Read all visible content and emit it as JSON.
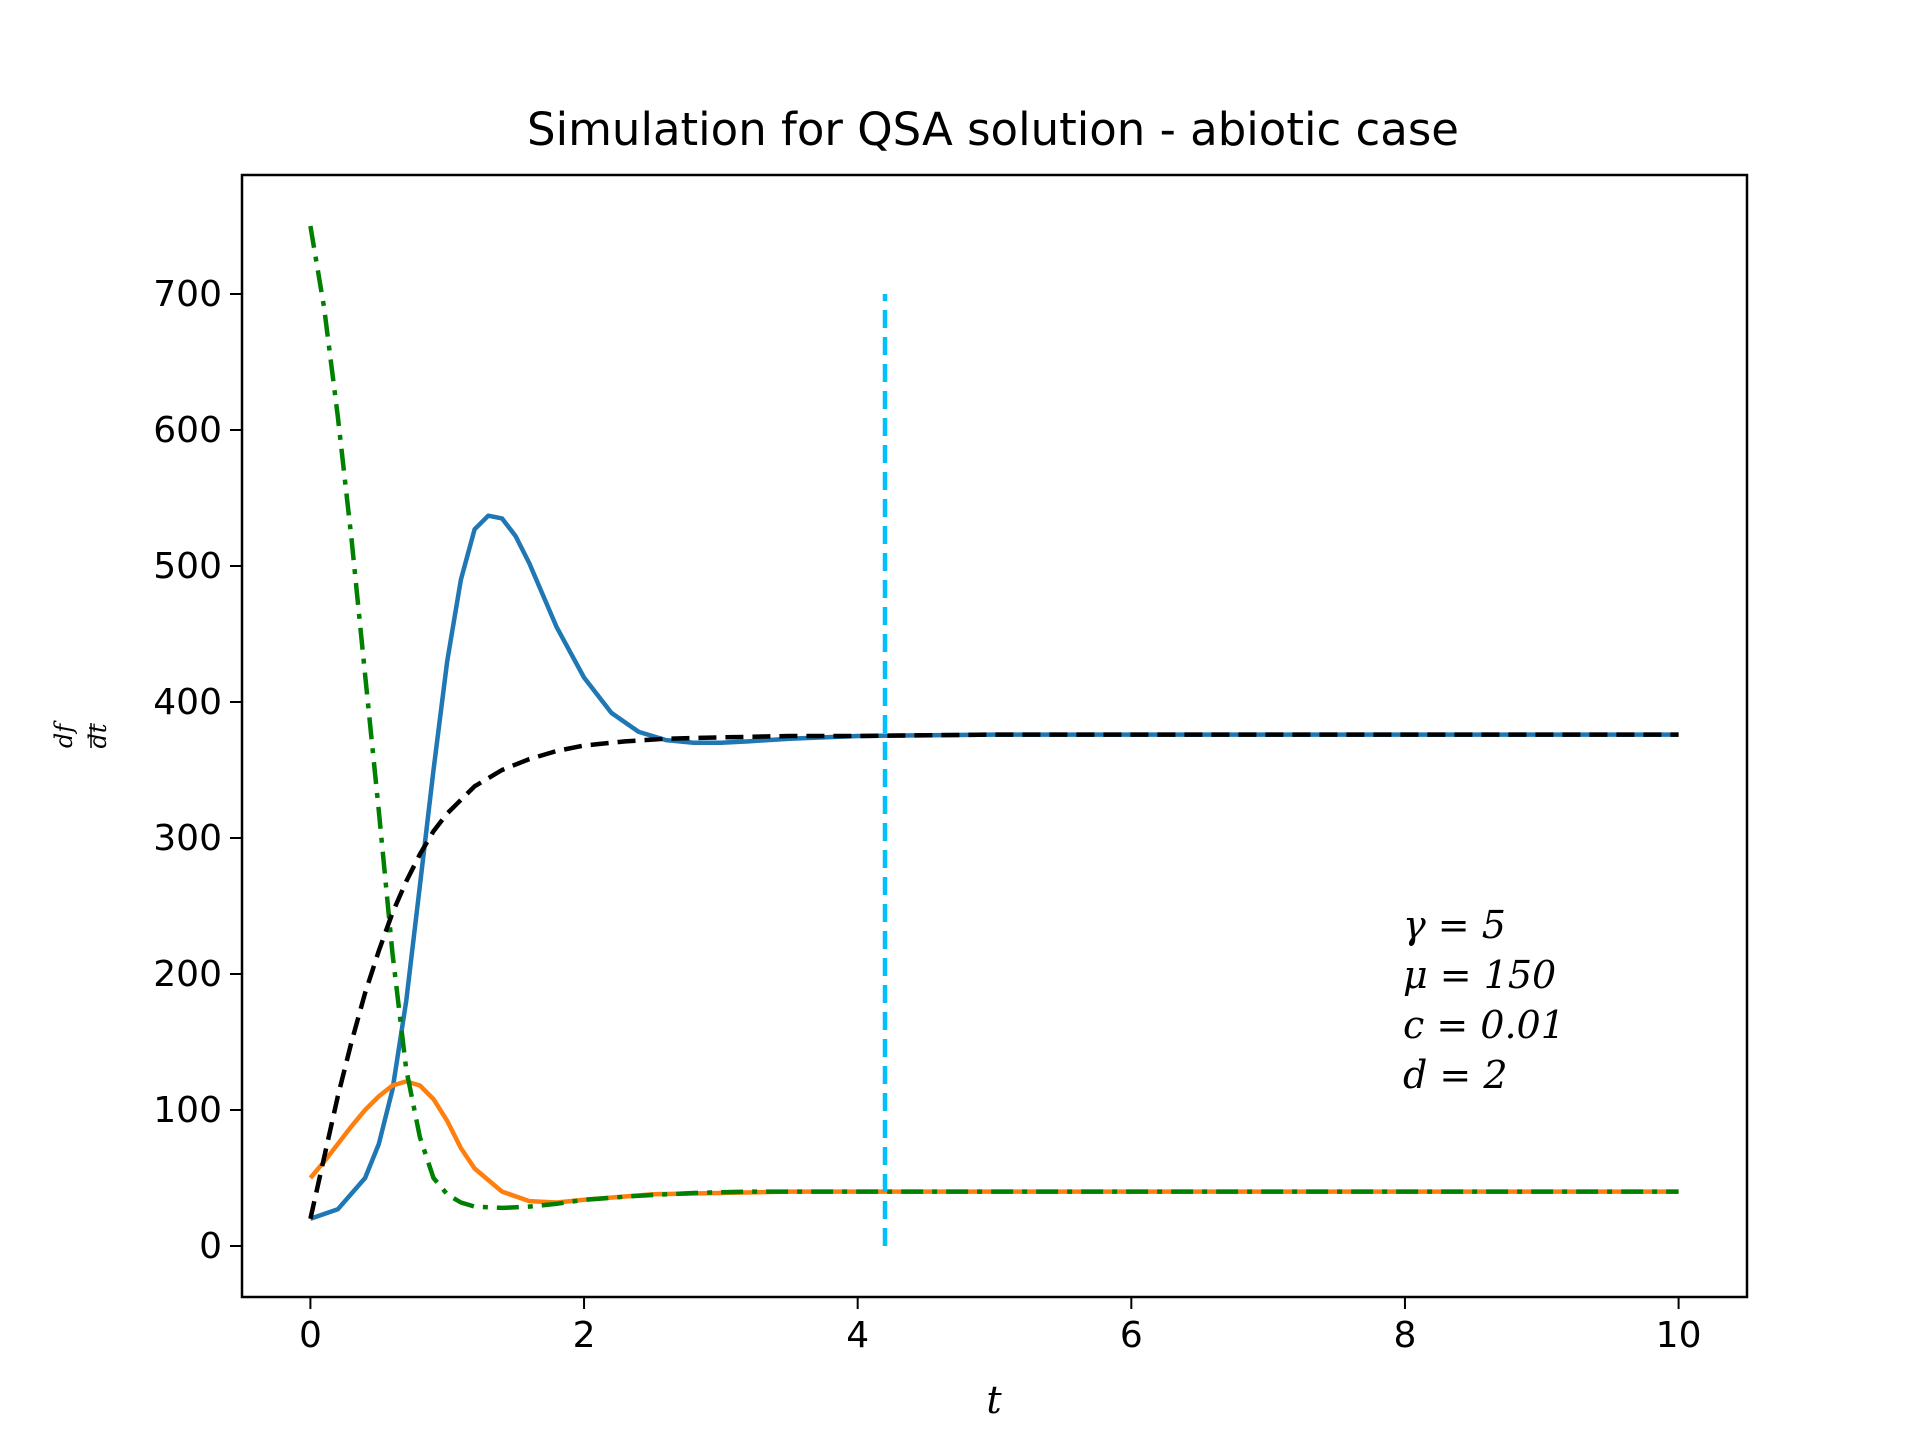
{
  "chart_data": {
    "type": "line",
    "title": "Simulation for QSA solution - abiotic case",
    "xlabel": "t",
    "ylabel": {
      "numerator": "df",
      "denominator": "dt"
    },
    "xlim": [
      -0.5,
      10.5
    ],
    "ylim": [
      -37.5,
      787.5
    ],
    "xticks": [
      0,
      2,
      4,
      6,
      8,
      10
    ],
    "yticks": [
      0,
      100,
      200,
      300,
      400,
      500,
      600,
      700
    ],
    "grid": false,
    "legend": "none",
    "colors": {
      "blue": "#1f77b4",
      "orange": "#ff7f0e",
      "green": "#008000",
      "black": "#000000",
      "cyan": "#00bfff"
    },
    "series": [
      {
        "color": "#1f77b4",
        "style": "solid",
        "x": [
          0,
          0.2,
          0.4,
          0.5,
          0.6,
          0.7,
          0.8,
          0.9,
          1.0,
          1.1,
          1.2,
          1.3,
          1.4,
          1.5,
          1.6,
          1.8,
          2.0,
          2.2,
          2.4,
          2.6,
          2.8,
          3.0,
          3.2,
          3.5,
          4.0,
          5.0,
          10.0
        ],
        "y": [
          20,
          27,
          50,
          75,
          115,
          180,
          265,
          350,
          430,
          490,
          527,
          537,
          535,
          522,
          502,
          455,
          418,
          392,
          378,
          372,
          370,
          370,
          371,
          373,
          375,
          376,
          376
        ]
      },
      {
        "color": "#ff7f0e",
        "style": "solid",
        "x": [
          0,
          0.1,
          0.2,
          0.3,
          0.4,
          0.5,
          0.6,
          0.7,
          0.8,
          0.9,
          1.0,
          1.1,
          1.2,
          1.4,
          1.6,
          1.8,
          2.0,
          2.5,
          3.0,
          3.5,
          10.0
        ],
        "y": [
          50,
          62,
          75,
          88,
          100,
          110,
          118,
          121,
          118,
          108,
          92,
          72,
          57,
          40,
          33,
          32,
          34,
          38,
          39,
          40,
          40
        ]
      },
      {
        "color": "#008000",
        "style": "dashdot",
        "x": [
          0,
          0.1,
          0.2,
          0.3,
          0.4,
          0.5,
          0.6,
          0.7,
          0.8,
          0.9,
          1.0,
          1.1,
          1.2,
          1.4,
          1.6,
          1.8,
          2.0,
          2.4,
          2.8,
          3.2,
          3.6,
          10.0
        ],
        "y": [
          750,
          690,
          610,
          520,
          420,
          320,
          215,
          130,
          80,
          50,
          38,
          32,
          29,
          28,
          29,
          31,
          34,
          37,
          39,
          40,
          40,
          40
        ]
      },
      {
        "color": "#000000",
        "style": "dashed",
        "x": [
          0,
          0.1,
          0.2,
          0.3,
          0.4,
          0.5,
          0.6,
          0.7,
          0.8,
          0.9,
          1.0,
          1.2,
          1.4,
          1.6,
          1.8,
          2.0,
          2.3,
          2.6,
          3.0,
          3.5,
          4.0,
          5.0,
          10.0
        ],
        "y": [
          20,
          65,
          110,
          150,
          186,
          217,
          245,
          268,
          288,
          305,
          318,
          338,
          350,
          358,
          364,
          368,
          371,
          373,
          374,
          375,
          375,
          376,
          376
        ]
      },
      {
        "color": "#00bfff",
        "style": "dashed",
        "x": [
          4.2,
          4.2
        ],
        "y": [
          0,
          700
        ]
      }
    ],
    "annotations": [
      "γ = 5",
      "μ = 150",
      "c = 0.01",
      "d = 2"
    ]
  }
}
